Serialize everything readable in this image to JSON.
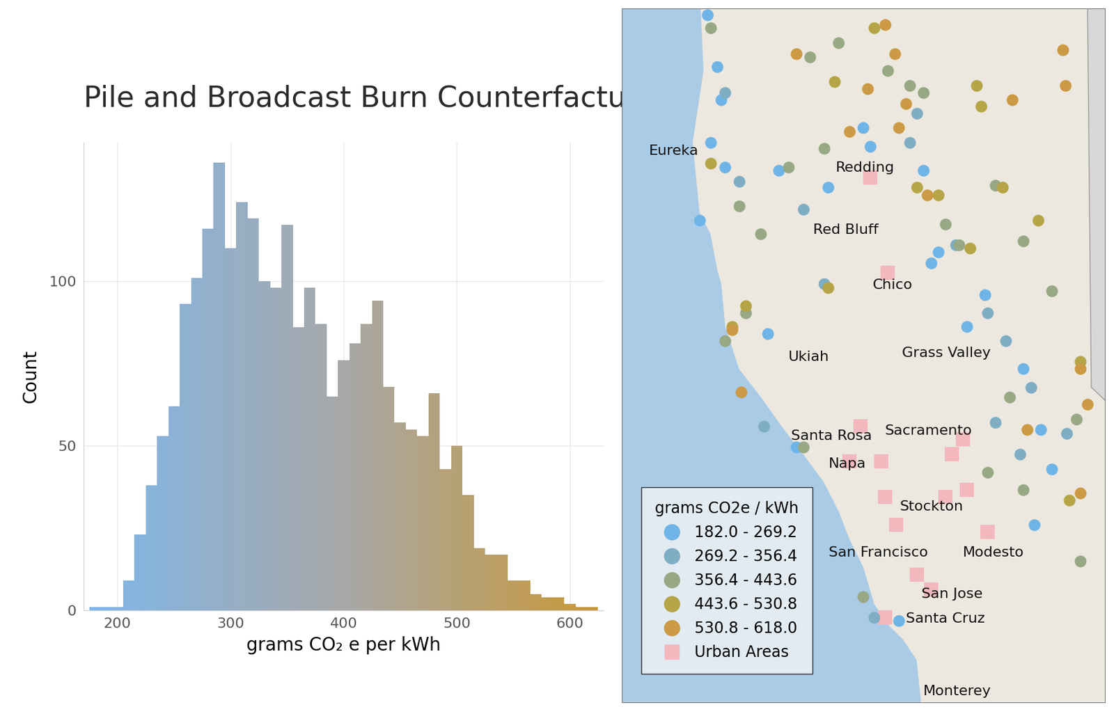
{
  "chart_data": [
    {
      "type": "histogram",
      "title": "Pile and Broadcast Burn Counterfactual",
      "x_label": "grams CO₂ e per kWh",
      "y_label": "Count",
      "bins": [
        175,
        185,
        195,
        205,
        215,
        225,
        235,
        245,
        255,
        265,
        275,
        285,
        295,
        305,
        315,
        325,
        335,
        345,
        355,
        365,
        375,
        385,
        395,
        405,
        415,
        425,
        435,
        445,
        455,
        465,
        475,
        485,
        495,
        505,
        515,
        525,
        535,
        545,
        555,
        565,
        575,
        585,
        595,
        605,
        615,
        625
      ],
      "counts": [
        1,
        1,
        1,
        9,
        23,
        38,
        53,
        62,
        93,
        101,
        116,
        136,
        110,
        124,
        119,
        100,
        98,
        117,
        86,
        98,
        87,
        65,
        76,
        81,
        87,
        94,
        68,
        57,
        55,
        53,
        66,
        43,
        50,
        35,
        19,
        17,
        17,
        9,
        9,
        5,
        4,
        4,
        2,
        1,
        1
      ],
      "colors": [
        "#7FB6EB",
        "#81B5E7",
        "#83B4E4",
        "#85B4E1",
        "#86B3DE",
        "#88B3DB",
        "#8AB2D8",
        "#8CB1D5",
        "#8EB1D2",
        "#90B0CF",
        "#92AFCC",
        "#93AFC9",
        "#95AEC6",
        "#97AEC3",
        "#99ADC0",
        "#9BACBD",
        "#9DACBA",
        "#9FABB7",
        "#A1AAB4",
        "#A2AAB1",
        "#A4A9AE",
        "#A6A9AB",
        "#A8A8A8",
        "#A9A7A3",
        "#ABA79E",
        "#ACA699",
        "#AEA594",
        "#AFA48F",
        "#B1A48A",
        "#B2A385",
        "#B3A280",
        "#B5A27B",
        "#B6A176",
        "#B8A071",
        "#B99F6C",
        "#BA9F67",
        "#BC9E62",
        "#BD9D5D",
        "#BF9D58",
        "#C09C53",
        "#C29B4E",
        "#C39A49",
        "#C49A44",
        "#C6993F",
        "#C7983A"
      ],
      "xlim": [
        170,
        630
      ],
      "ylim": [
        0,
        142
      ],
      "xticks": [
        200,
        300,
        400,
        500,
        600
      ],
      "yticks": [
        0,
        50,
        100
      ],
      "grid": true
    },
    {
      "type": "scatter",
      "legend_title": "grams CO2e / kWh",
      "legend": "lower left",
      "tick_labels": false,
      "xlim": [
        -124.7,
        -119.8
      ],
      "ylim": [
        36.4,
        42.1
      ],
      "series": [
        {
          "name": "182.0 - 269.2",
          "color": "#6FB4E6",
          "marker": "circle",
          "lon": [
            -123.83,
            -123.73,
            -123.69,
            -123.8,
            -123.65,
            -123.11,
            -122.61,
            -122.25,
            -122.18,
            -121.64,
            -121.56,
            -121.49,
            -121.02,
            -121.2,
            -120.63,
            -120.45,
            -120.34,
            -123.22,
            -122.93,
            -121.89,
            -123.91,
            -120.52
          ],
          "lat": [
            42.05,
            41.62,
            41.35,
            41.0,
            40.8,
            40.77,
            40.63,
            41.12,
            40.97,
            40.77,
            40.01,
            40.1,
            39.75,
            39.49,
            39.14,
            38.64,
            38.32,
            39.43,
            38.5,
            37.07,
            40.36,
            37.86
          ]
        },
        {
          "name": "269.2 - 356.4",
          "color": "#7FADC4",
          "marker": "circle",
          "lon": [
            -123.65,
            -123.51,
            -122.86,
            -121.71,
            -121.78,
            -120.99,
            -120.81,
            -120.55,
            -120.91,
            -120.19,
            -123.26,
            -122.14,
            -122.65,
            -121.31,
            -120.66
          ],
          "lat": [
            41.41,
            40.68,
            40.45,
            41.24,
            41.0,
            39.6,
            39.37,
            38.99,
            38.7,
            38.61,
            38.67,
            37.1,
            39.84,
            40.16,
            38.44
          ]
        },
        {
          "name": "356.4 - 443.6",
          "color": "#97A884",
          "marker": "circle",
          "lon": [
            -123.8,
            -122.79,
            -122.5,
            -122.0,
            -121.78,
            -121.64,
            -122.65,
            -123.01,
            -123.29,
            -121.42,
            -121.28,
            -120.63,
            -120.34,
            -120.77,
            -120.09,
            -120.99,
            -120.63,
            -120.05,
            -122.86,
            -122.25,
            -123.44,
            -123.65,
            -120.91,
            -123.51
          ],
          "lat": [
            41.94,
            41.7,
            41.82,
            41.59,
            41.47,
            41.41,
            40.95,
            40.8,
            40.25,
            40.33,
            40.16,
            40.19,
            39.78,
            38.91,
            38.73,
            38.29,
            38.15,
            37.56,
            38.5,
            37.27,
            39.6,
            39.37,
            40.65,
            40.48
          ]
        },
        {
          "name": "443.6 - 530.8",
          "color": "#B5A547",
          "marker": "circle",
          "lon": [
            -122.14,
            -121.1,
            -121.06,
            -121.71,
            -121.49,
            -120.84,
            -121.17,
            -120.05,
            -120.16,
            -123.58,
            -123.8,
            -122.61,
            -123.44,
            -120.48,
            -122.54
          ],
          "lat": [
            41.94,
            41.47,
            41.3,
            40.63,
            40.57,
            40.63,
            40.13,
            39.2,
            38.06,
            39.49,
            40.83,
            39.81,
            39.66,
            40.36,
            41.5
          ]
        },
        {
          "name": "530.8 - 618.0",
          "color": "#CC9A45",
          "marker": "circle",
          "lon": [
            -122.03,
            -121.93,
            -122.93,
            -122.21,
            -122.39,
            -121.82,
            -121.6,
            -120.74,
            -120.2,
            -120.23,
            -120.05,
            -119.98,
            -120.59,
            -120.05,
            -123.49,
            -123.58,
            -121.89
          ],
          "lat": [
            41.97,
            41.73,
            41.73,
            41.44,
            41.09,
            41.32,
            40.57,
            41.35,
            41.47,
            41.76,
            39.14,
            38.85,
            38.64,
            38.12,
            38.95,
            39.46,
            41.12
          ]
        },
        {
          "name": "Urban Areas",
          "color": "#F2B8BD",
          "marker": "square",
          "lon": [
            -121.35,
            -121.24,
            -121.92,
            -121.71,
            -122.03,
            -121.56,
            -122.18,
            -122.0,
            -121.42,
            -120.99,
            -122.28,
            -122.07,
            -122.03,
            -122.39,
            -121.2
          ],
          "lat": [
            38.44,
            38.56,
            37.86,
            37.45,
            38.09,
            37.33,
            40.71,
            39.93,
            38.09,
            37.8,
            38.67,
            38.38,
            37.1,
            38.38,
            38.15
          ]
        }
      ],
      "labels": [
        {
          "text": "Eureka",
          "lon": -124.17,
          "lat": 40.93
        },
        {
          "text": "Redding",
          "lon": -122.23,
          "lat": 40.79
        },
        {
          "text": "Red Bluff",
          "lon": -122.43,
          "lat": 40.28
        },
        {
          "text": "Chico",
          "lon": -121.95,
          "lat": 39.83
        },
        {
          "text": "Ukiah",
          "lon": -122.81,
          "lat": 39.24
        },
        {
          "text": "Grass Valley",
          "lon": -121.41,
          "lat": 39.27
        },
        {
          "text": "Santa Rosa",
          "lon": -122.57,
          "lat": 38.59
        },
        {
          "text": "Sacramento",
          "lon": -121.59,
          "lat": 38.63
        },
        {
          "text": "Napa",
          "lon": -122.41,
          "lat": 38.36
        },
        {
          "text": "Stockton",
          "lon": -121.56,
          "lat": 38.01
        },
        {
          "text": "San Francisco",
          "lon": -122.1,
          "lat": 37.63
        },
        {
          "text": "Modesto",
          "lon": -120.93,
          "lat": 37.63
        },
        {
          "text": "San Jose",
          "lon": -121.35,
          "lat": 37.29
        },
        {
          "text": "Santa Cruz",
          "lon": -121.42,
          "lat": 37.09
        },
        {
          "text": "Monterey",
          "lon": -121.3,
          "lat": 36.49
        }
      ]
    }
  ]
}
